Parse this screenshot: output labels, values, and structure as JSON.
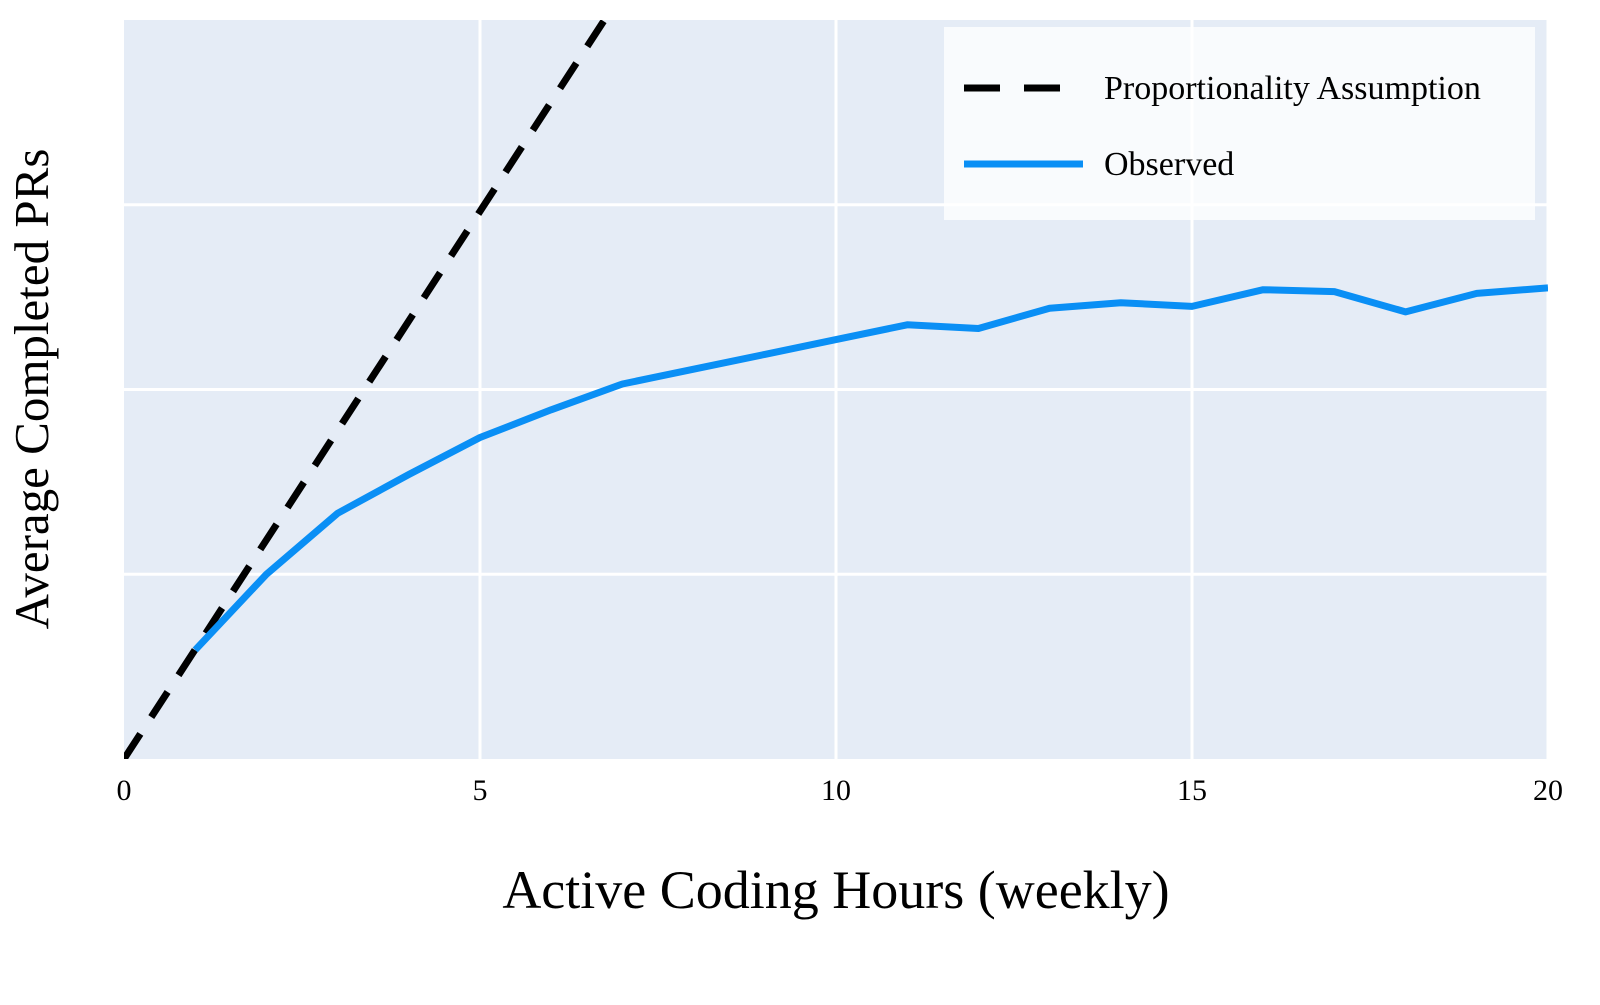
{
  "chart_data": {
    "type": "line",
    "title": "",
    "xlabel": "Active Coding Hours (weekly)",
    "ylabel": "Average Completed PRs",
    "xlim": [
      0,
      20
    ],
    "ylim": [
      0,
      4
    ],
    "x_ticks": [
      0,
      5,
      10,
      15,
      20
    ],
    "x_tick_labels": [
      "0",
      "5",
      "10",
      "15",
      "20"
    ],
    "y_ticks": [
      0,
      1,
      2,
      3,
      4
    ],
    "y_tick_labels_visible": false,
    "grid": true,
    "legend_position": "top-right",
    "background_color": "#e5ecf6",
    "series": [
      {
        "name": "Proportionality Assumption",
        "style": "dashed",
        "color": "#000000",
        "x": [
          0,
          7
        ],
        "y": [
          0,
          4.15
        ]
      },
      {
        "name": "Observed",
        "style": "solid",
        "color": "#0a8ff5",
        "x": [
          1,
          2,
          3,
          4,
          5,
          6,
          7,
          8,
          9,
          10,
          11,
          12,
          13,
          14,
          15,
          16,
          17,
          18,
          19,
          20
        ],
        "y": [
          0.59,
          1.0,
          1.33,
          1.54,
          1.74,
          1.89,
          2.03,
          2.11,
          2.19,
          2.27,
          2.35,
          2.33,
          2.44,
          2.47,
          2.45,
          2.54,
          2.53,
          2.42,
          2.52,
          2.55
        ]
      }
    ]
  }
}
